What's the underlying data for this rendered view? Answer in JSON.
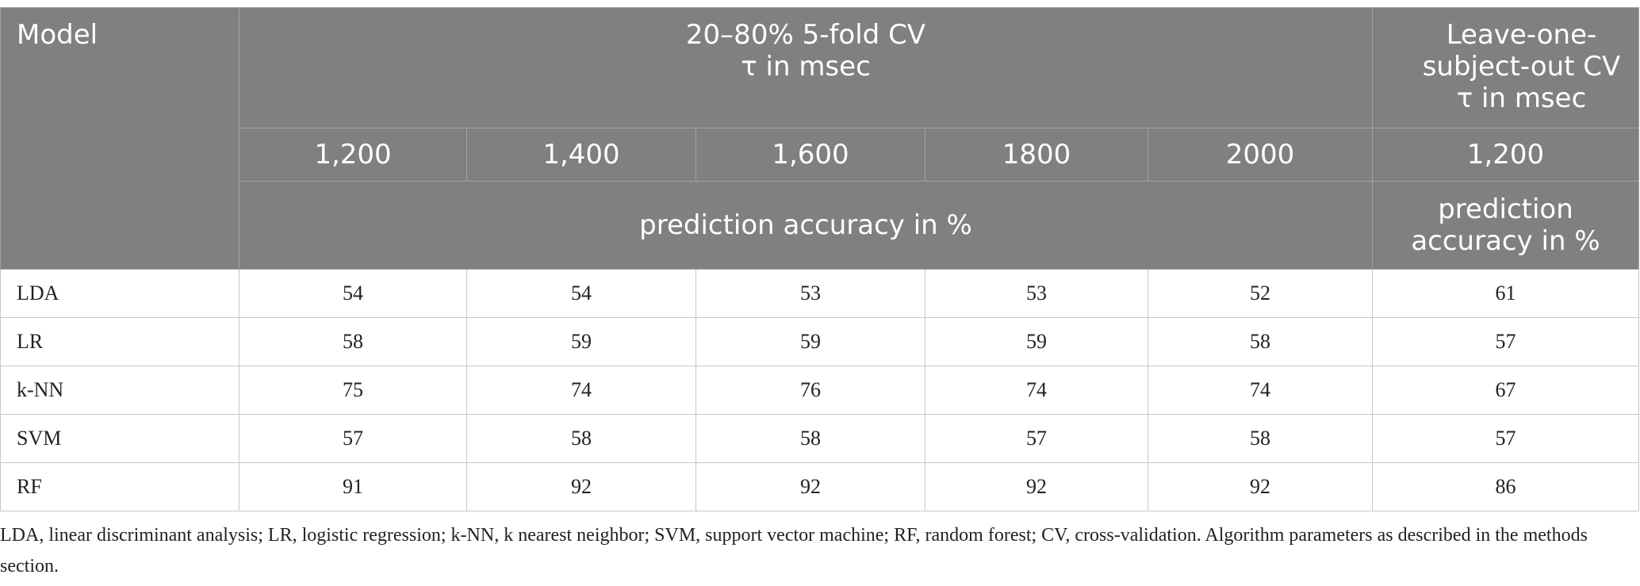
{
  "table": {
    "header": {
      "model": "Model",
      "cv_group": [
        "20–80% 5-fold CV",
        "τ in msec"
      ],
      "loso_group": [
        "Leave-one-subject-out CV",
        "τ in msec"
      ],
      "taus": [
        "1,200",
        "1,400",
        "1,600",
        "1800",
        "2000"
      ],
      "loso_tau": "1,200",
      "metric": "prediction accuracy in %",
      "loso_metric": "prediction accuracy in %"
    },
    "rows": [
      [
        "LDA",
        54,
        54,
        53,
        53,
        52,
        61
      ],
      [
        "LR",
        58,
        59,
        59,
        59,
        58,
        57
      ],
      [
        "k-NN",
        75,
        74,
        76,
        74,
        74,
        67
      ],
      [
        "SVM",
        57,
        58,
        58,
        57,
        58,
        57
      ],
      [
        "RF",
        91,
        92,
        92,
        92,
        92,
        86
      ]
    ]
  },
  "footnote": "LDA, linear discriminant analysis; LR, logistic regression; k-NN, k nearest neighbor; SVM, support vector machine; RF, random forest; CV, cross-validation. Algorithm parameters as described in the methods section."
}
